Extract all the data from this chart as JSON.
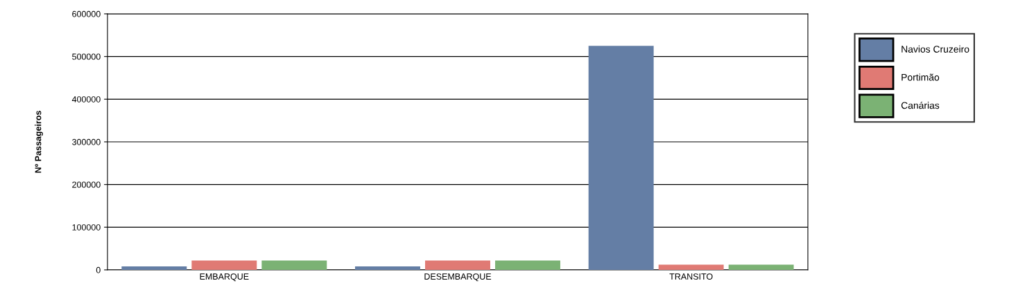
{
  "chart_data": {
    "type": "bar",
    "ylabel": "Nº Passageiros",
    "categories": [
      "EMBARQUE",
      "DESEMBARQUE",
      "TRANSITO"
    ],
    "series": [
      {
        "name": "Navios Cruzeiro",
        "color": "#647ea5",
        "values": [
          8000,
          8000,
          525000
        ]
      },
      {
        "name": "Portimão",
        "color": "#e07a74",
        "values": [
          22000,
          22000,
          12000
        ]
      },
      {
        "name": "Canárias",
        "color": "#7bb274",
        "values": [
          22000,
          22000,
          12000
        ]
      }
    ],
    "ylim": [
      0,
      600000
    ],
    "yticks": [
      0,
      100000,
      200000,
      300000,
      400000,
      500000,
      600000
    ],
    "grid": "y",
    "legend": "right"
  }
}
